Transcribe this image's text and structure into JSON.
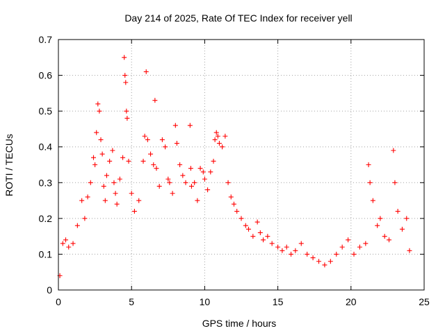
{
  "chart_data": {
    "type": "scatter",
    "title": "Day 214 of 2025, Rate Of TEC Index for receiver yell",
    "xlabel": "GPS time / hours",
    "ylabel": "ROTI / TECUs",
    "xlim": [
      0,
      25
    ],
    "ylim": [
      0,
      0.7
    ],
    "xticks": [
      0,
      5,
      10,
      15,
      20,
      25
    ],
    "xtick_labels": [
      "0",
      "5",
      "10",
      "15",
      "20",
      "25"
    ],
    "yticks": [
      0,
      0.1,
      0.2,
      0.3,
      0.4,
      0.5,
      0.6,
      0.7
    ],
    "ytick_labels": [
      "0",
      "0.1",
      "0.2",
      "0.3",
      "0.4",
      "0.5",
      "0.6",
      "0.7"
    ],
    "grid": true,
    "marker": "plus",
    "color": "#ff0000",
    "series": [
      {
        "name": "ROTI",
        "x": [
          0.1,
          0.3,
          0.5,
          0.7,
          1.0,
          1.3,
          1.6,
          1.8,
          2.0,
          2.2,
          2.4,
          2.5,
          2.6,
          2.7,
          2.8,
          2.9,
          3.0,
          3.1,
          3.2,
          3.3,
          3.5,
          3.7,
          3.8,
          3.9,
          4.0,
          4.2,
          4.4,
          4.5,
          4.55,
          4.6,
          4.65,
          4.7,
          4.8,
          5.0,
          5.2,
          5.5,
          5.8,
          5.9,
          6.0,
          6.1,
          6.3,
          6.5,
          6.6,
          6.7,
          6.9,
          7.1,
          7.3,
          7.5,
          7.6,
          7.8,
          8.0,
          8.1,
          8.3,
          8.5,
          8.7,
          9.0,
          9.05,
          9.1,
          9.3,
          9.5,
          9.7,
          9.9,
          10.0,
          10.2,
          10.4,
          10.6,
          10.7,
          10.8,
          10.9,
          11.0,
          11.2,
          11.4,
          11.6,
          11.8,
          12.0,
          12.2,
          12.5,
          12.8,
          13.0,
          13.3,
          13.6,
          13.8,
          14.0,
          14.3,
          14.6,
          15.0,
          15.3,
          15.6,
          15.9,
          16.2,
          16.6,
          17.0,
          17.4,
          17.8,
          18.2,
          18.6,
          19.0,
          19.4,
          19.8,
          20.2,
          20.6,
          21.0,
          21.2,
          21.3,
          21.5,
          21.8,
          22.0,
          22.3,
          22.6,
          22.9,
          23.0,
          23.2,
          23.5,
          23.8,
          24.0
        ],
        "y": [
          0.04,
          0.13,
          0.14,
          0.12,
          0.13,
          0.18,
          0.25,
          0.2,
          0.26,
          0.3,
          0.37,
          0.35,
          0.44,
          0.52,
          0.5,
          0.42,
          0.38,
          0.29,
          0.25,
          0.32,
          0.36,
          0.39,
          0.3,
          0.27,
          0.24,
          0.31,
          0.37,
          0.65,
          0.6,
          0.58,
          0.5,
          0.48,
          0.36,
          0.27,
          0.22,
          0.25,
          0.36,
          0.43,
          0.61,
          0.42,
          0.38,
          0.35,
          0.53,
          0.34,
          0.29,
          0.42,
          0.4,
          0.31,
          0.3,
          0.27,
          0.46,
          0.41,
          0.35,
          0.32,
          0.3,
          0.46,
          0.34,
          0.29,
          0.3,
          0.25,
          0.34,
          0.33,
          0.31,
          0.28,
          0.33,
          0.36,
          0.42,
          0.44,
          0.43,
          0.41,
          0.4,
          0.43,
          0.3,
          0.26,
          0.24,
          0.22,
          0.2,
          0.18,
          0.17,
          0.15,
          0.19,
          0.16,
          0.14,
          0.15,
          0.13,
          0.12,
          0.11,
          0.12,
          0.1,
          0.11,
          0.13,
          0.1,
          0.09,
          0.08,
          0.07,
          0.08,
          0.1,
          0.12,
          0.14,
          0.1,
          0.12,
          0.13,
          0.35,
          0.3,
          0.25,
          0.18,
          0.2,
          0.15,
          0.14,
          0.39,
          0.3,
          0.22,
          0.17,
          0.2,
          0.11
        ]
      }
    ]
  }
}
